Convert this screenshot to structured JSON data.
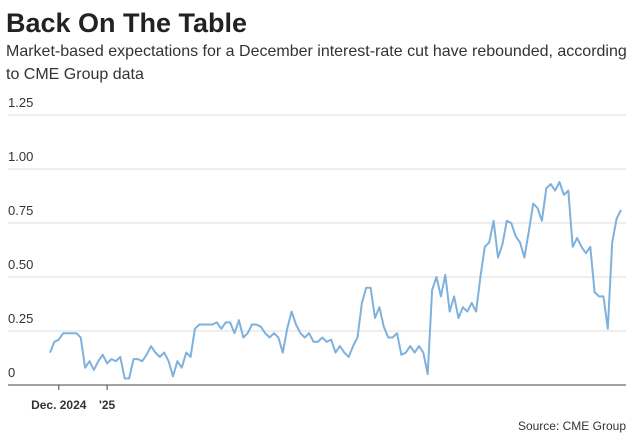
{
  "chart_data": {
    "type": "line",
    "title": "Back On The Table",
    "subtitle": "Market-based expectations for a December interest-rate cut have rebounded, according to CME Group data",
    "source": "Source: CME Group",
    "categories": [
      null,
      null,
      "Dec. 2024",
      null,
      null,
      null,
      null,
      null,
      null,
      null,
      null,
      null,
      null,
      "'25",
      null,
      null,
      null,
      null,
      null,
      null,
      null,
      null,
      null,
      null,
      null,
      null,
      null,
      null,
      null,
      null,
      null,
      null,
      null,
      null,
      null,
      null,
      null,
      null,
      null,
      null,
      null,
      null,
      null,
      null,
      null,
      null,
      null,
      null,
      null,
      null,
      null,
      null,
      null,
      null,
      null,
      null,
      null,
      null,
      null,
      null,
      null,
      null,
      null,
      null,
      null,
      null,
      null,
      null,
      null,
      null,
      null,
      null,
      null,
      null,
      null,
      null,
      null,
      null,
      null,
      null,
      null,
      null,
      null,
      null,
      null,
      null,
      null,
      null,
      null,
      null,
      null,
      null,
      null,
      null,
      null,
      null,
      null,
      null,
      null,
      null,
      null,
      null,
      null,
      null,
      null,
      null,
      null,
      null,
      null,
      null,
      null,
      null,
      null,
      null,
      null,
      null,
      null,
      null,
      null,
      null,
      null,
      null,
      null,
      null,
      null,
      null,
      null,
      null,
      null,
      null,
      null
    ],
    "series": [
      {
        "color": "#7fb1dd",
        "values": [
          0.15,
          0.2,
          0.21,
          0.24,
          0.24,
          0.24,
          0.24,
          0.22,
          0.08,
          0.11,
          0.07,
          0.11,
          0.14,
          0.1,
          0.12,
          0.11,
          0.13,
          0.03,
          0.03,
          0.12,
          0.12,
          0.11,
          0.14,
          0.18,
          0.15,
          0.13,
          0.15,
          0.11,
          0.04,
          0.11,
          0.08,
          0.15,
          0.13,
          0.26,
          0.28,
          0.28,
          0.28,
          0.28,
          0.29,
          0.26,
          0.29,
          0.29,
          0.24,
          0.3,
          0.22,
          0.24,
          0.28,
          0.28,
          0.27,
          0.24,
          0.22,
          0.24,
          0.22,
          0.15,
          0.26,
          0.34,
          0.28,
          0.24,
          0.22,
          0.24,
          0.2,
          0.2,
          0.22,
          0.2,
          0.21,
          0.15,
          0.18,
          0.15,
          0.13,
          0.18,
          0.22,
          0.38,
          0.45,
          0.45,
          0.31,
          0.36,
          0.27,
          0.22,
          0.22,
          0.24,
          0.14,
          0.15,
          0.18,
          0.15,
          0.18,
          0.15,
          0.05,
          0.44,
          0.5,
          0.41,
          0.51,
          0.34,
          0.41,
          0.31,
          0.36,
          0.34,
          0.38,
          0.34,
          0.5,
          0.64,
          0.66,
          0.76,
          0.59,
          0.65,
          0.76,
          0.75,
          0.69,
          0.66,
          0.59,
          0.71,
          0.84,
          0.82,
          0.76,
          0.91,
          0.93,
          0.9,
          0.94,
          0.88,
          0.9,
          0.64,
          0.68,
          0.64,
          0.61,
          0.64,
          0.43,
          0.41,
          0.41,
          0.26,
          0.66,
          0.77,
          0.81
        ]
      }
    ],
    "ylim": [
      0,
      1.25
    ],
    "yticks": [
      0,
      {
        "value": 0.25,
        "label": "0.25"
      },
      {
        "value": 0.5,
        "label": "0.50"
      },
      {
        "value": 0.75,
        "label": "0.75"
      },
      {
        "value": 1,
        "label": "1.00"
      },
      {
        "value": 1.25,
        "label": "1.25"
      }
    ],
    "grid": true
  }
}
